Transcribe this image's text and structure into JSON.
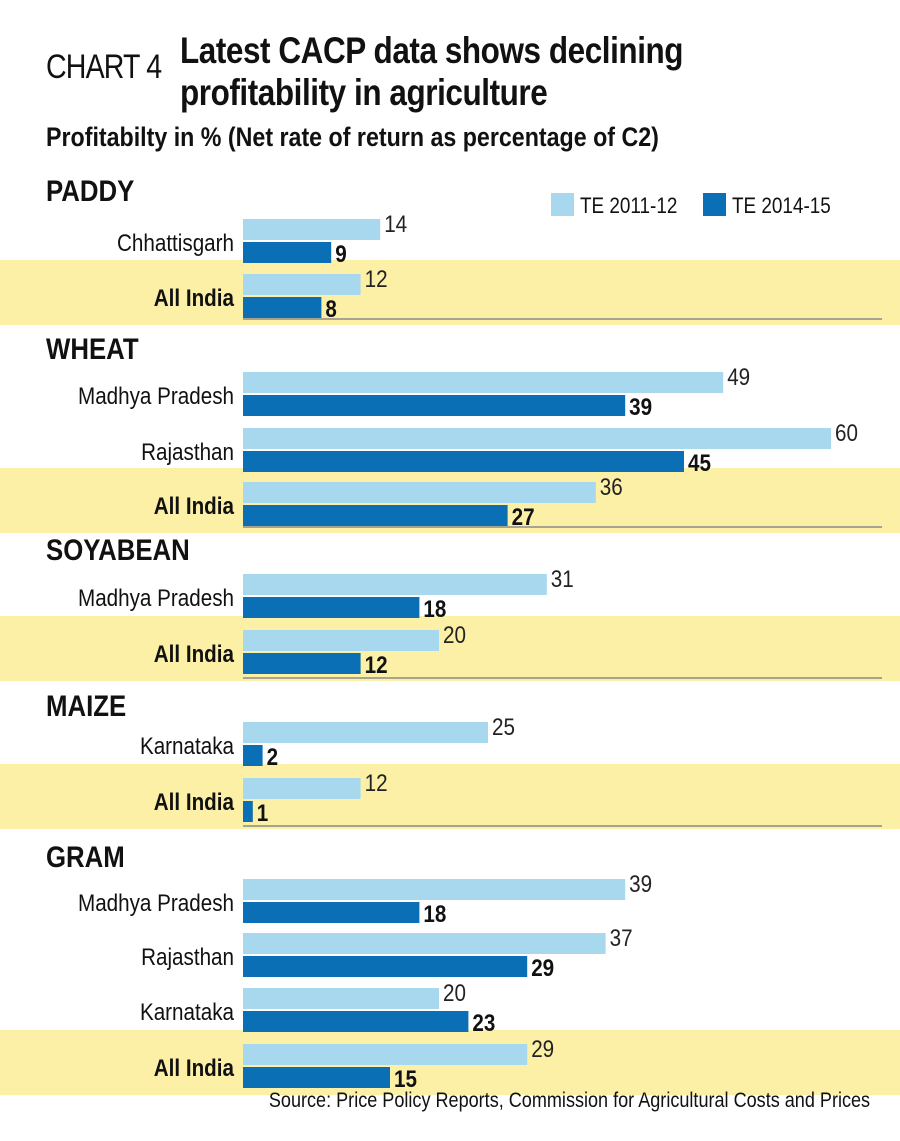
{
  "header": {
    "chart_label": "CHART 4",
    "title_line1": "Latest CACP data shows declining",
    "title_line2": "profitability in agriculture",
    "subtitle": "Profitabilty in % (Net rate of return as percentage of C2)"
  },
  "source": "Source: Price Policy Reports, Commission for Agricultural Costs and Prices",
  "colors": {
    "series1": "#a8d8ee",
    "series2": "#0b6fb5",
    "highlight": "#fbf0a6",
    "separator": "#8a8a8a"
  },
  "chart_data": {
    "type": "bar",
    "orientation": "horizontal",
    "title": "Latest CACP data shows declining profitability in agriculture",
    "subtitle": "Profitabilty in % (Net rate of return as percentage of C2)",
    "legend": {
      "position": "top-right",
      "entries": [
        "TE 2011-12",
        "TE 2014-15"
      ]
    },
    "series_names": [
      "TE 2011-12",
      "TE 2014-15"
    ],
    "xlim": [
      0,
      60
    ],
    "grid": false,
    "groups": [
      {
        "name": "PADDY",
        "rows": [
          {
            "label": "Chhattisgarh",
            "values": [
              14,
              9
            ],
            "highlight": false
          },
          {
            "label": "All India",
            "values": [
              12,
              8
            ],
            "highlight": true
          }
        ]
      },
      {
        "name": "WHEAT",
        "rows": [
          {
            "label": "Madhya Pradesh",
            "values": [
              49,
              39
            ],
            "highlight": false
          },
          {
            "label": "Rajasthan",
            "values": [
              60,
              45
            ],
            "highlight": false
          },
          {
            "label": "All India",
            "values": [
              36,
              27
            ],
            "highlight": true
          }
        ]
      },
      {
        "name": "SOYABEAN",
        "rows": [
          {
            "label": "Madhya Pradesh",
            "values": [
              31,
              18
            ],
            "highlight": false
          },
          {
            "label": "All India",
            "values": [
              20,
              12
            ],
            "highlight": true
          }
        ]
      },
      {
        "name": "MAIZE",
        "rows": [
          {
            "label": "Karnataka",
            "values": [
              25,
              2
            ],
            "highlight": false
          },
          {
            "label": "All India",
            "values": [
              12,
              1
            ],
            "highlight": true
          }
        ]
      },
      {
        "name": "GRAM",
        "rows": [
          {
            "label": "Madhya Pradesh",
            "values": [
              39,
              18
            ],
            "highlight": false
          },
          {
            "label": "Rajasthan",
            "values": [
              37,
              29
            ],
            "highlight": false
          },
          {
            "label": "Karnataka",
            "values": [
              20,
              23
            ],
            "highlight": false
          },
          {
            "label": "All India",
            "values": [
              29,
              15
            ],
            "highlight": true
          }
        ]
      }
    ]
  }
}
